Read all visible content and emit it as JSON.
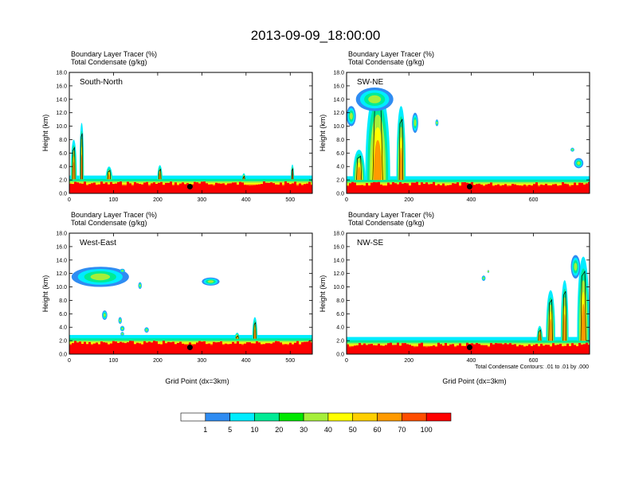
{
  "figure": {
    "title": "2013-09-09_18:00:00",
    "ylabel": "Height (km)",
    "xlabel": "Grid Point (dx=3km)",
    "contour_note": "Total Condensate Contours: .01 to .01 by .000"
  },
  "colorbar": {
    "colors": [
      "#ffffff",
      "#2f8cf2",
      "#00ecff",
      "#00eb95",
      "#00e800",
      "#a6ef3a",
      "#ffff00",
      "#ffcf00",
      "#ff9a00",
      "#ff4d00",
      "#ff0000"
    ],
    "labels": [
      "1",
      "5",
      "10",
      "20",
      "30",
      "40",
      "50",
      "60",
      "70",
      "100"
    ]
  },
  "chart_data": [
    {
      "type": "heatmap",
      "label": "South-North",
      "subtitle1": "Boundary Layer Tracer   (%)",
      "subtitle2": "Total Condensate   (g/kg)",
      "ylim": [
        0,
        18
      ],
      "yticks": [
        "0.0",
        "2.0",
        "4.0",
        "6.0",
        "8.0",
        "10.0",
        "12.0",
        "14.0",
        "16.0",
        "18.0"
      ],
      "xlim": [
        0,
        550
      ],
      "xticks": [
        "0",
        "100",
        "200",
        "300",
        "400",
        "500"
      ],
      "marker": {
        "x": 273,
        "y": 1.0
      },
      "blh_km": 2.1,
      "plumes": [
        {
          "x": 10,
          "w": 14,
          "top": 8.0
        },
        {
          "x": 28,
          "w": 10,
          "top": 10.5
        },
        {
          "x": 90,
          "w": 16,
          "top": 4.0
        },
        {
          "x": 205,
          "w": 12,
          "top": 4.2
        },
        {
          "x": 395,
          "w": 10,
          "top": 3.0
        },
        {
          "x": 505,
          "w": 8,
          "top": 4.3
        }
      ],
      "clouds": []
    },
    {
      "type": "heatmap",
      "label": "SW-NE",
      "subtitle1": "Boundary Layer Tracer   (%)",
      "subtitle2": "Total Condensate   (g/kg)",
      "ylim": [
        0,
        18
      ],
      "yticks": [
        "0.0",
        "2.0",
        "4.0",
        "6.0",
        "8.0",
        "10.0",
        "12.0",
        "14.0",
        "16.0",
        "18.0"
      ],
      "xlim": [
        0,
        780
      ],
      "xticks": [
        "0",
        "200",
        "400",
        "600"
      ],
      "marker": {
        "x": 395,
        "y": 1.0
      },
      "blh_km": 2.0,
      "plumes": [
        {
          "x": 100,
          "w": 80,
          "top": 15.5
        },
        {
          "x": 40,
          "w": 40,
          "top": 6.5
        },
        {
          "x": 175,
          "w": 30,
          "top": 13.0
        }
      ],
      "clouds": [
        {
          "x": 90,
          "y": 14.0,
          "w": 120,
          "h": 3.5
        },
        {
          "x": 15,
          "y": 11.5,
          "w": 30,
          "h": 3.0
        },
        {
          "x": 220,
          "y": 10.5,
          "w": 20,
          "h": 3.0
        },
        {
          "x": 290,
          "y": 10.5,
          "w": 10,
          "h": 1.0
        },
        {
          "x": 745,
          "y": 4.5,
          "w": 30,
          "h": 1.5
        },
        {
          "x": 725,
          "y": 6.5,
          "w": 12,
          "h": 0.6
        }
      ]
    },
    {
      "type": "heatmap",
      "label": "West-East",
      "subtitle1": "Boundary Layer Tracer   (%)",
      "subtitle2": "Total Condensate   (g/kg)",
      "ylim": [
        0,
        18
      ],
      "yticks": [
        "0.0",
        "2.0",
        "4.0",
        "6.0",
        "8.0",
        "10.0",
        "12.0",
        "14.0",
        "16.0",
        "18.0"
      ],
      "xlim": [
        0,
        550
      ],
      "xticks": [
        "0",
        "100",
        "200",
        "300",
        "400",
        "500"
      ],
      "marker": {
        "x": 273,
        "y": 1.0
      },
      "blh_km": 2.3,
      "plumes": [
        {
          "x": 420,
          "w": 12,
          "top": 5.5
        },
        {
          "x": 380,
          "w": 14,
          "top": 3.2
        }
      ],
      "clouds": [
        {
          "x": 70,
          "y": 11.5,
          "w": 130,
          "h": 3.0
        },
        {
          "x": 320,
          "y": 10.8,
          "w": 40,
          "h": 1.2
        },
        {
          "x": 160,
          "y": 10.2,
          "w": 8,
          "h": 1.0
        },
        {
          "x": 80,
          "y": 5.8,
          "w": 12,
          "h": 1.4
        },
        {
          "x": 115,
          "y": 5.0,
          "w": 8,
          "h": 1.0
        },
        {
          "x": 120,
          "y": 3.8,
          "w": 10,
          "h": 0.8
        },
        {
          "x": 175,
          "y": 3.6,
          "w": 10,
          "h": 0.8
        },
        {
          "x": 120,
          "y": 3.0,
          "w": 8,
          "h": 0.6
        },
        {
          "x": 120,
          "y": 12.4,
          "w": 12,
          "h": 0.6
        }
      ]
    },
    {
      "type": "heatmap",
      "label": "NW-SE",
      "subtitle1": "Boundary Layer Tracer   (%)",
      "subtitle2": "Total Condensate   (g/kg)",
      "ylim": [
        0,
        18
      ],
      "yticks": [
        "0.0",
        "2.0",
        "4.0",
        "6.0",
        "8.0",
        "10.0",
        "12.0",
        "14.0",
        "16.0",
        "18.0"
      ],
      "xlim": [
        0,
        780
      ],
      "xticks": [
        "0",
        "200",
        "400",
        "600"
      ],
      "marker": {
        "x": 395,
        "y": 1.0
      },
      "blh_km": 2.0,
      "plumes": [
        {
          "x": 655,
          "w": 30,
          "top": 9.5
        },
        {
          "x": 700,
          "w": 25,
          "top": 11.0
        },
        {
          "x": 760,
          "w": 40,
          "top": 14.5
        },
        {
          "x": 620,
          "w": 20,
          "top": 4.2
        }
      ],
      "clouds": [
        {
          "x": 735,
          "y": 13.0,
          "w": 30,
          "h": 3.5
        },
        {
          "x": 440,
          "y": 11.3,
          "w": 12,
          "h": 0.8
        },
        {
          "x": 455,
          "y": 12.3,
          "w": 6,
          "h": 0.4
        }
      ]
    }
  ]
}
